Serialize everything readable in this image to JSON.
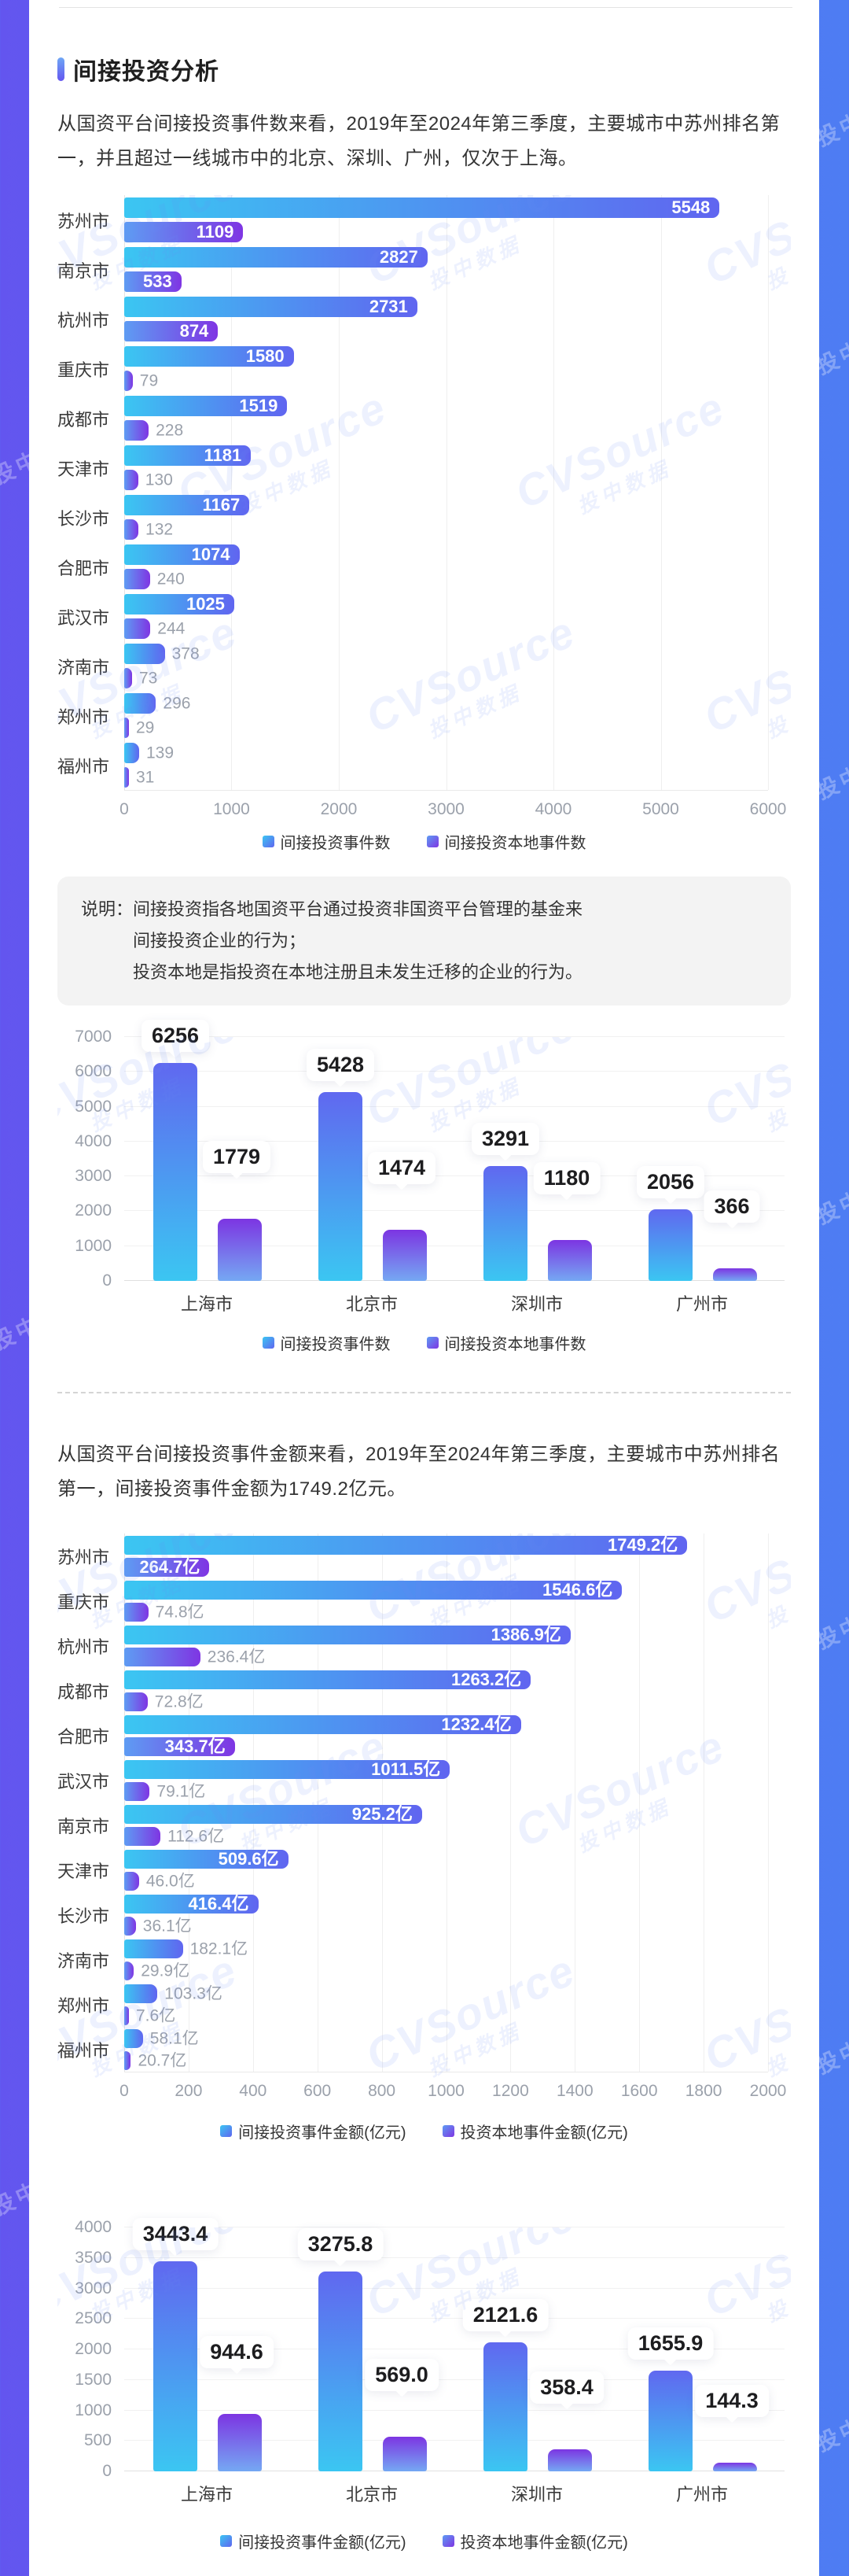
{
  "page": {
    "section_title": "间接投资分析",
    "paragraph1": "从国资平台间接投资事件数来看，2019年至2024年第三季度，主要城市中苏州排名第一，并且超过一线城市中的北京、深圳、广州，仅次于上海。",
    "paragraph2": "从国资平台间接投资事件金额来看，2019年至2024年第三季度，主要城市中苏州排名第一，间接投资事件金额为1749.2亿元。",
    "note": {
      "label": "说明：",
      "line1": "间接投资指各地国资平台通过投资非国资平台管理的基金来",
      "line2": "间接投资企业的行为；",
      "line3": "投资本地是指投资在本地注册且未发生迁移的企业的行为。"
    },
    "watermark": {
      "brand": "CVSource",
      "cn": "投中数据"
    },
    "colors": {
      "border_left": "#6355EF",
      "border_right": "#4E7DF3",
      "series1_gradient": [
        "#3BC6F2",
        "#6065F0"
      ],
      "series2_gradient": [
        "#5E9CF3",
        "#7F35E3"
      ],
      "note_bg": "#F3F3F3",
      "axis_text": "#9BA1AB"
    }
  },
  "chart_data": [
    {
      "id": "events-by-city",
      "type": "bar",
      "orientation": "horizontal",
      "categories": [
        "苏州市",
        "南京市",
        "杭州市",
        "重庆市",
        "成都市",
        "天津市",
        "长沙市",
        "合肥市",
        "武汉市",
        "济南市",
        "郑州市",
        "福州市"
      ],
      "series": [
        {
          "name": "间接投资事件数",
          "values": [
            5548,
            2827,
            2731,
            1580,
            1519,
            1181,
            1167,
            1074,
            1025,
            378,
            296,
            139
          ]
        },
        {
          "name": "间接投资本地事件数",
          "values": [
            1109,
            533,
            874,
            79,
            228,
            130,
            132,
            240,
            244,
            73,
            29,
            31
          ]
        }
      ],
      "xlim": [
        0,
        6000
      ],
      "xticks": [
        0,
        1000,
        2000,
        3000,
        4000,
        5000,
        6000
      ],
      "grid": true,
      "legend_position": "bottom"
    },
    {
      "id": "events-tier1",
      "type": "bar",
      "orientation": "vertical",
      "categories": [
        "上海市",
        "北京市",
        "深圳市",
        "广州市"
      ],
      "series": [
        {
          "name": "间接投资事件数",
          "values": [
            6256,
            5428,
            3291,
            2056
          ]
        },
        {
          "name": "间接投资本地事件数",
          "values": [
            1779,
            1474,
            1180,
            366
          ]
        }
      ],
      "ylim": [
        0,
        7000
      ],
      "yticks": [
        0,
        1000,
        2000,
        3000,
        4000,
        5000,
        6000,
        7000
      ],
      "grid": true,
      "legend_position": "bottom"
    },
    {
      "id": "amount-by-city",
      "type": "bar",
      "orientation": "horizontal",
      "unit": "亿元",
      "categories": [
        "苏州市",
        "重庆市",
        "杭州市",
        "成都市",
        "合肥市",
        "武汉市",
        "南京市",
        "天津市",
        "长沙市",
        "济南市",
        "郑州市",
        "福州市"
      ],
      "series": [
        {
          "name": "间接投资事件金额(亿元)",
          "values": [
            1749.2,
            1546.6,
            1386.9,
            1263.2,
            1232.4,
            1011.5,
            925.2,
            509.6,
            416.4,
            182.1,
            103.3,
            58.1
          ],
          "labels": [
            "1749.2亿",
            "1546.6亿",
            "1386.9亿",
            "1263.2亿",
            "1232.4亿",
            "1011.5亿",
            "925.2亿",
            "509.6亿",
            "416.4亿",
            "182.1亿",
            "103.3亿",
            "58.1亿"
          ]
        },
        {
          "name": "投资本地事件金额(亿元)",
          "values": [
            264.7,
            74.8,
            236.4,
            72.8,
            343.7,
            79.1,
            112.6,
            46.0,
            36.1,
            29.9,
            7.6,
            20.7
          ],
          "labels": [
            "264.7亿",
            "74.8亿",
            "236.4亿",
            "72.8亿",
            "343.7亿",
            "79.1亿",
            "112.6亿",
            "46.0亿",
            "36.1亿",
            "29.9亿",
            "7.6亿",
            "20.7亿"
          ]
        }
      ],
      "xlim": [
        0,
        2000
      ],
      "xticks": [
        0,
        200,
        400,
        600,
        800,
        1000,
        1200,
        1400,
        1600,
        1800,
        2000
      ],
      "grid": true,
      "legend_position": "bottom"
    },
    {
      "id": "amount-tier1",
      "type": "bar",
      "orientation": "vertical",
      "unit": "亿元",
      "categories": [
        "上海市",
        "北京市",
        "深圳市",
        "广州市"
      ],
      "series": [
        {
          "name": "间接投资事件金额(亿元)",
          "values": [
            3443.4,
            3275.8,
            2121.6,
            1655.9
          ],
          "labels": [
            "3443.4",
            "3275.8",
            "2121.6",
            "1655.9"
          ]
        },
        {
          "name": "投资本地事件金额(亿元)",
          "values": [
            944.6,
            569.0,
            358.4,
            144.3
          ],
          "labels": [
            "944.6",
            "569.0",
            "358.4",
            "144.3"
          ]
        }
      ],
      "ylim": [
        0,
        4000
      ],
      "yticks": [
        0,
        500,
        1000,
        1500,
        2000,
        2500,
        3000,
        3500,
        4000
      ],
      "grid": true,
      "legend_position": "bottom"
    }
  ]
}
